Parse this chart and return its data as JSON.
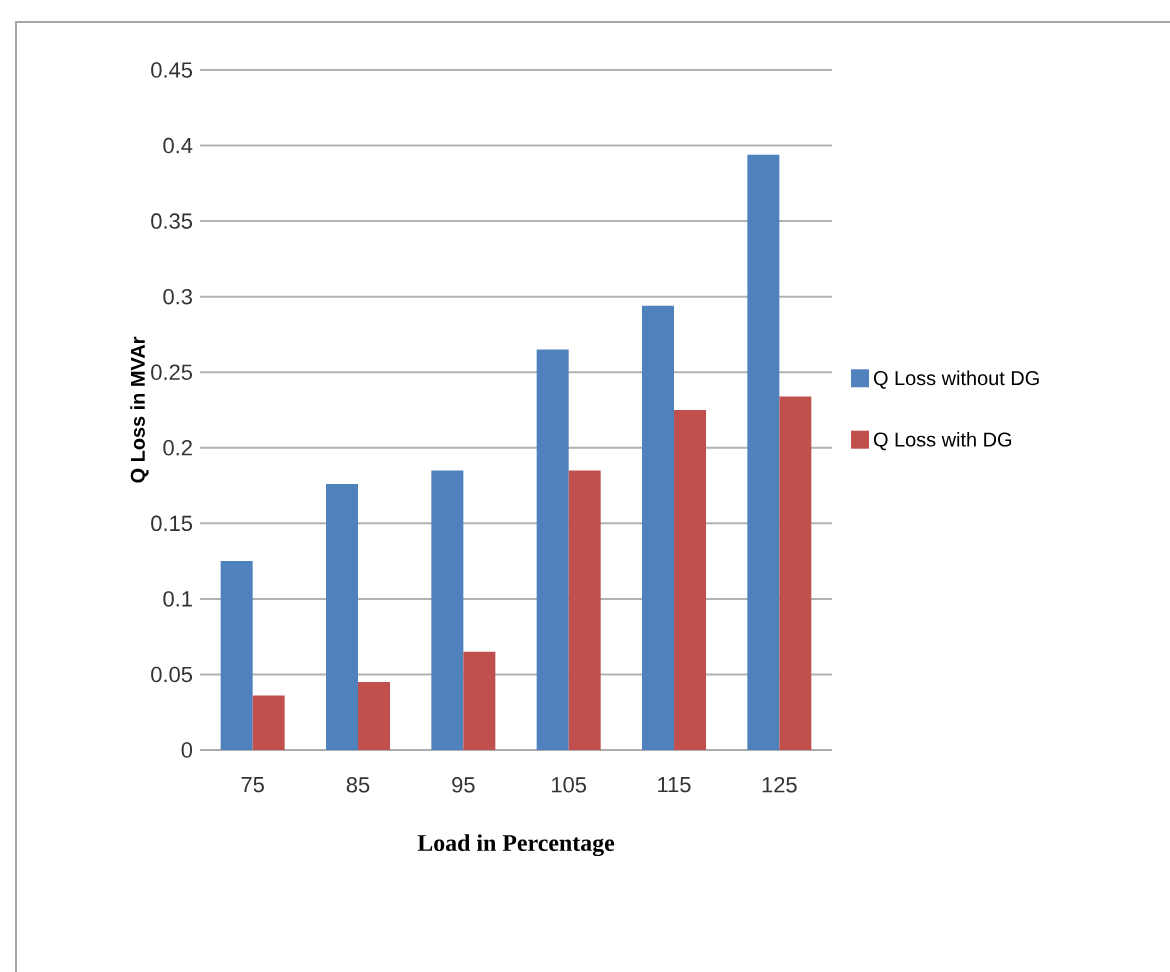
{
  "chart_data": {
    "type": "bar",
    "xlabel": "Load in Percentage",
    "ylabel": "Q Loss  in  MVAr",
    "categories": [
      "75",
      "85",
      "95",
      "105",
      "115",
      "125"
    ],
    "series": [
      {
        "name": "Q Loss without  DG",
        "color": "#4f81bd",
        "values": [
          0.125,
          0.176,
          0.185,
          0.265,
          0.294,
          0.394
        ]
      },
      {
        "name": "Q Loss with DG",
        "color": "#c0504d",
        "values": [
          0.036,
          0.045,
          0.065,
          0.185,
          0.225,
          0.234
        ]
      }
    ],
    "ylim": [
      0,
      0.45
    ],
    "yticks": [
      0,
      0.05,
      0.1,
      0.15,
      0.2,
      0.25,
      0.3,
      0.35,
      0.4,
      0.45
    ],
    "grid": "y",
    "legend": "right"
  }
}
